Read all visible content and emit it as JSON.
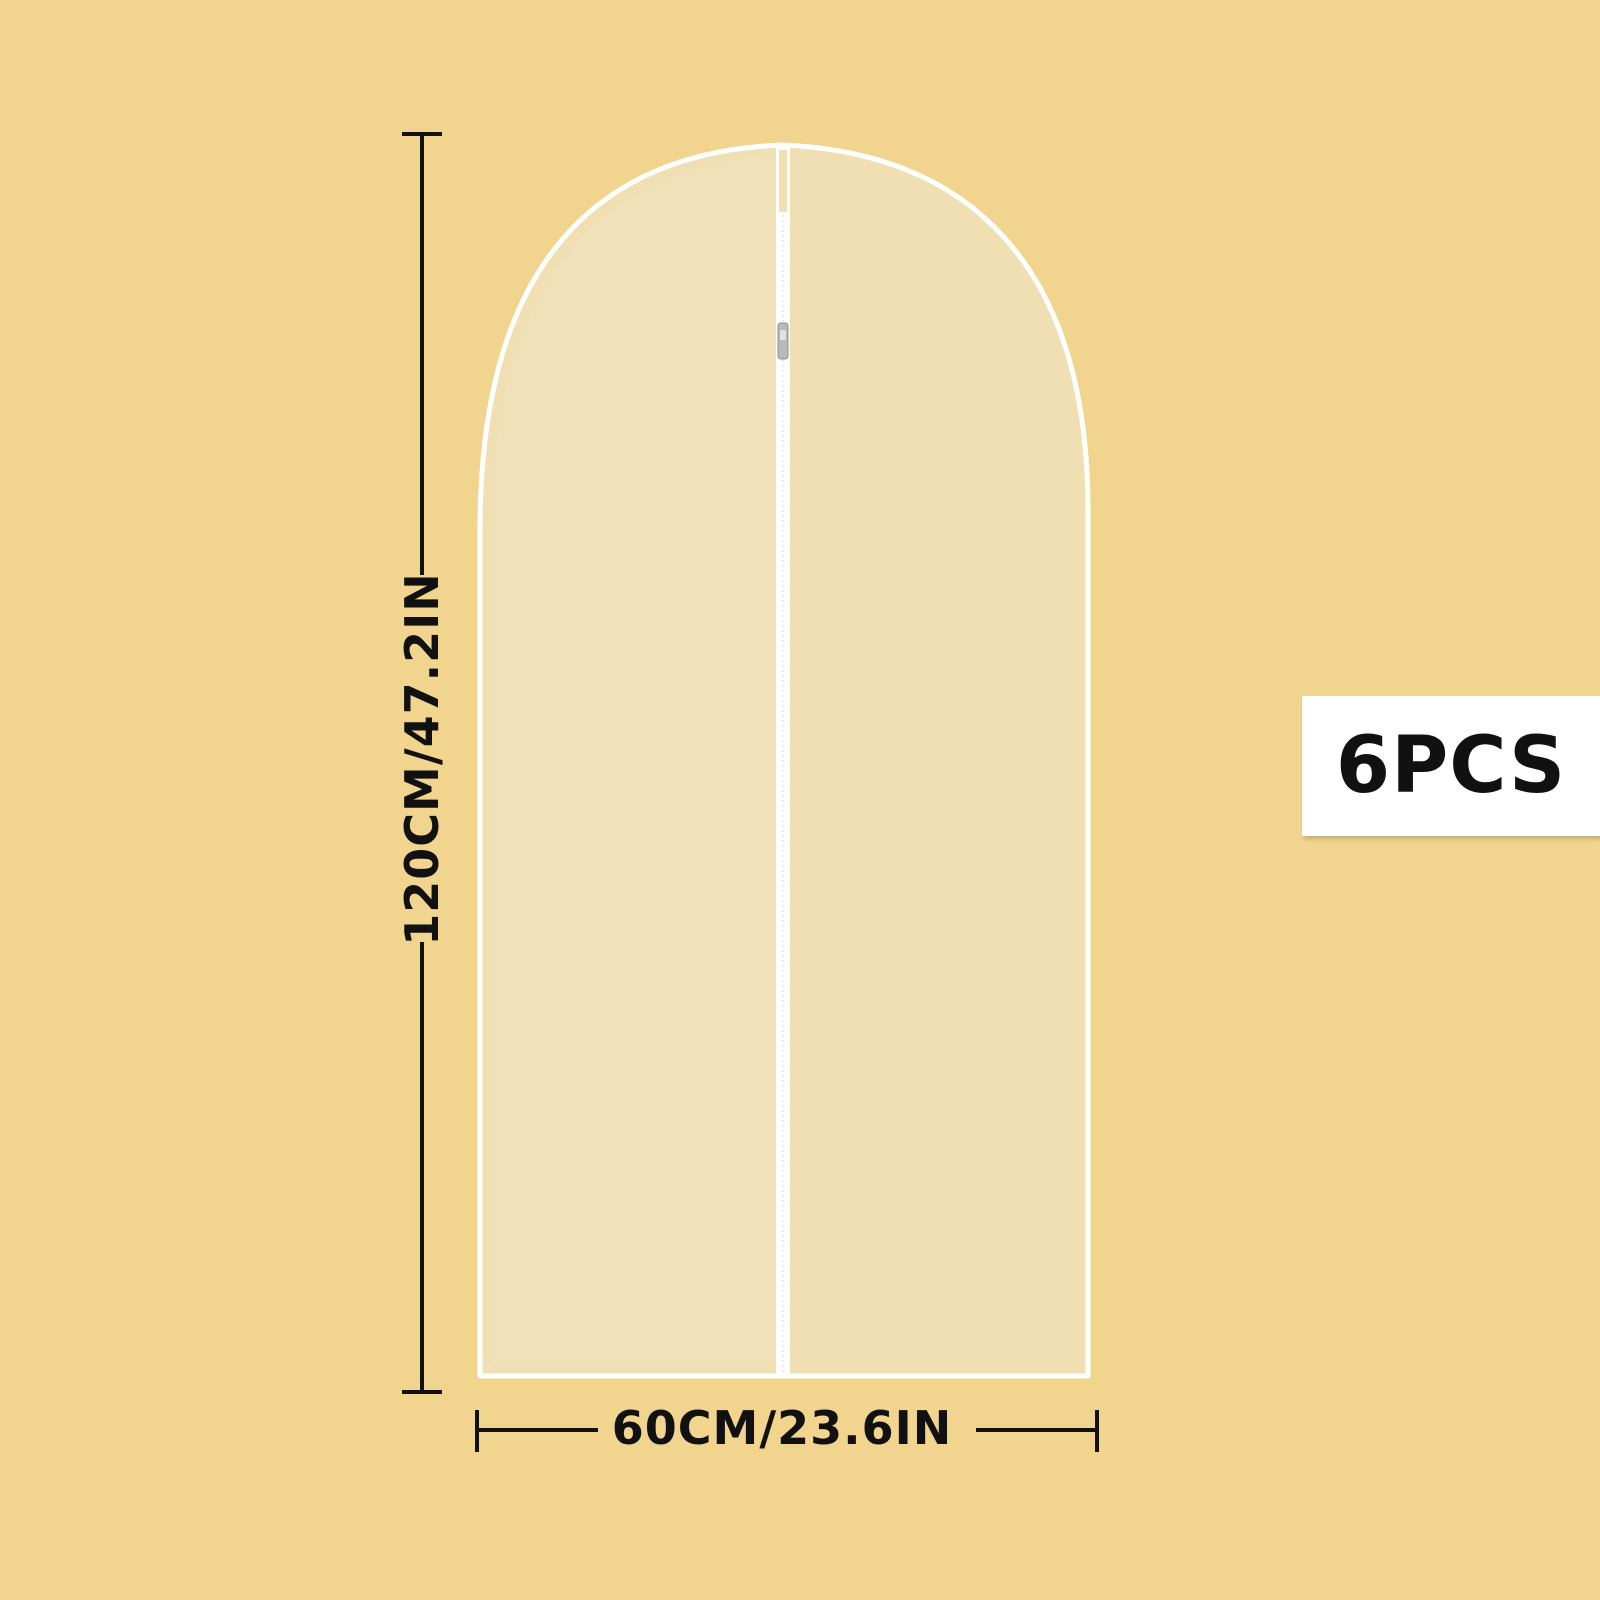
{
  "dimensions": {
    "height_label": "120CM/47.2IN",
    "width_label": "60CM/23.6IN"
  },
  "badge": {
    "label": "6PCS"
  },
  "colors": {
    "background": "#F1D48E",
    "bag_fill": "#F0DFB3",
    "bag_border": "#FFFFFF",
    "dimension_lines": "#111111"
  },
  "icons": {
    "zipper_pull": "zipper-pull-icon"
  }
}
